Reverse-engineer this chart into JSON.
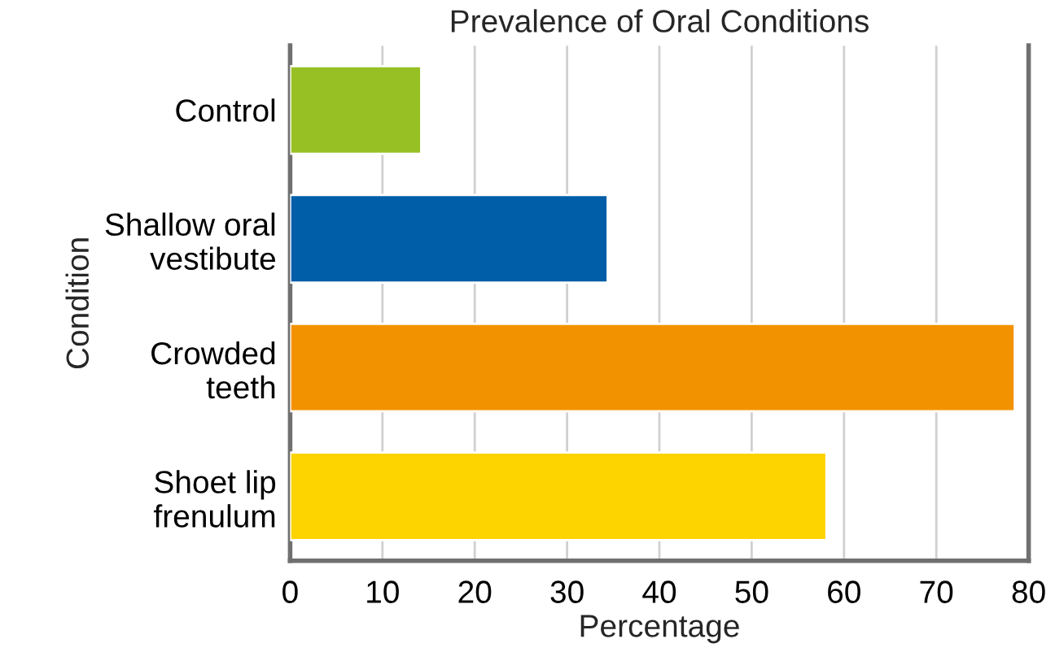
{
  "chart_data": {
    "type": "bar",
    "orientation": "horizontal",
    "title": "Prevalence of Oral Conditions",
    "xlabel": "Percentage",
    "ylabel": "Condition",
    "categories": [
      "Control",
      "Shallow oral\nvestibute",
      "Crowded\nteeth",
      "Shoet lip\nfrenulum"
    ],
    "values": [
      14.2,
      34.4,
      78.5,
      58.1
    ],
    "colors": [
      "#97c024",
      "#005ea8",
      "#f39200",
      "#fdd300"
    ],
    "xlim": [
      0,
      80
    ],
    "xticks": [
      0,
      10,
      20,
      30,
      40,
      50,
      60,
      70,
      80
    ],
    "grid": "x"
  }
}
